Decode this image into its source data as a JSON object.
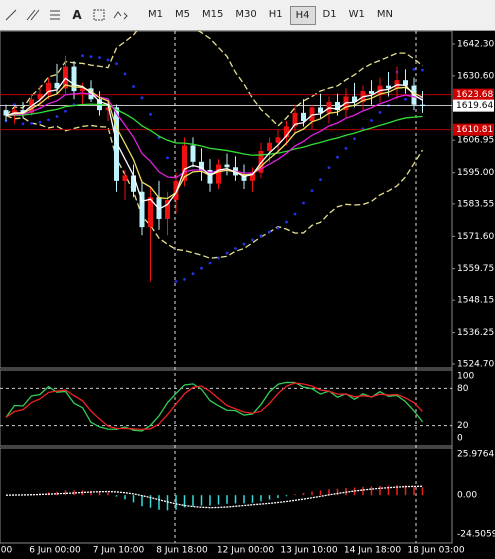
{
  "toolbar": {
    "icon_text": "A",
    "timeframes": [
      "M1",
      "M5",
      "M15",
      "M30",
      "H1",
      "H4",
      "D1",
      "W1",
      "MN"
    ],
    "active": "H4"
  },
  "chart": {
    "ylim": [
      1524.7,
      1642.3
    ],
    "yticks": [
      {
        "value": 1642.3,
        "label": "1642.30"
      },
      {
        "value": 1630.6,
        "label": "1630.60"
      },
      {
        "value": 1606.95,
        "label": "1606.95"
      },
      {
        "value": 1595.0,
        "label": "1595.00"
      },
      {
        "value": 1583.55,
        "label": "1583.55"
      },
      {
        "value": 1571.6,
        "label": "1571.60"
      },
      {
        "value": 1559.75,
        "label": "1559.75"
      },
      {
        "value": 1548.15,
        "label": "1548.15"
      },
      {
        "value": 1536.25,
        "label": "1536.25"
      },
      {
        "value": 1524.7,
        "label": "1524.70"
      }
    ],
    "levels": [
      {
        "value": 1623.68,
        "color": "#cc0000"
      },
      {
        "value": 1619.64,
        "color": "#ffffff"
      },
      {
        "value": 1610.81,
        "color": "#cc0000"
      }
    ],
    "candles": [
      [
        1618,
        1620,
        1614,
        1616
      ],
      [
        1616,
        1619,
        1613,
        1618
      ],
      [
        1618,
        1621,
        1615,
        1617
      ],
      [
        1617,
        1624,
        1616,
        1622
      ],
      [
        1622,
        1627,
        1619,
        1624
      ],
      [
        1624,
        1630,
        1622,
        1628
      ],
      [
        1628,
        1635,
        1624,
        1626
      ],
      [
        1626,
        1638,
        1624,
        1634
      ],
      [
        1634,
        1636,
        1622,
        1625
      ],
      [
        1625,
        1628,
        1620,
        1626
      ],
      [
        1626,
        1629,
        1621,
        1622
      ],
      [
        1622,
        1625,
        1616,
        1618
      ],
      [
        1618,
        1621,
        1614,
        1619
      ],
      [
        1619,
        1620,
        1588,
        1592
      ],
      [
        1592,
        1596,
        1585,
        1594
      ],
      [
        1594,
        1598,
        1586,
        1588
      ],
      [
        1588,
        1592,
        1572,
        1575
      ],
      [
        1575,
        1590,
        1555,
        1586
      ],
      [
        1586,
        1592,
        1574,
        1578
      ],
      [
        1578,
        1588,
        1572,
        1585
      ],
      [
        1585,
        1595,
        1580,
        1592
      ],
      [
        1592,
        1608,
        1590,
        1605
      ],
      [
        1605,
        1608,
        1597,
        1599
      ],
      [
        1599,
        1604,
        1592,
        1596
      ],
      [
        1596,
        1600,
        1588,
        1591
      ],
      [
        1591,
        1600,
        1589,
        1598
      ],
      [
        1598,
        1602,
        1594,
        1597
      ],
      [
        1597,
        1601,
        1592,
        1594
      ],
      [
        1594,
        1598,
        1589,
        1592
      ],
      [
        1592,
        1597,
        1588,
        1595
      ],
      [
        1595,
        1606,
        1593,
        1603
      ],
      [
        1603,
        1608,
        1599,
        1606
      ],
      [
        1606,
        1611,
        1603,
        1608
      ],
      [
        1608,
        1614,
        1605,
        1612
      ],
      [
        1612,
        1620,
        1609,
        1617
      ],
      [
        1617,
        1622,
        1612,
        1614
      ],
      [
        1614,
        1620,
        1611,
        1619
      ],
      [
        1619,
        1624,
        1615,
        1617
      ],
      [
        1617,
        1623,
        1613,
        1621
      ],
      [
        1621,
        1624,
        1616,
        1618
      ],
      [
        1618,
        1626,
        1615,
        1623
      ],
      [
        1623,
        1628,
        1619,
        1621
      ],
      [
        1621,
        1627,
        1618,
        1625
      ],
      [
        1625,
        1629,
        1620,
        1624
      ],
      [
        1624,
        1630,
        1621,
        1627
      ],
      [
        1627,
        1632,
        1623,
        1626
      ],
      [
        1626,
        1634,
        1622,
        1629
      ],
      [
        1629,
        1633,
        1624,
        1627
      ],
      [
        1627,
        1630,
        1618,
        1620
      ],
      [
        1620,
        1625,
        1617,
        1619.64
      ]
    ]
  },
  "stochastic": {
    "ylim": [
      0,
      100
    ],
    "yticks": [
      100,
      80,
      20,
      0
    ]
  },
  "macd": {
    "ylim": [
      -24.5059,
      25.9764
    ],
    "yticks": [
      25.9764,
      {
        "value": 0,
        "label": "0.00"
      },
      -24.5059
    ]
  },
  "time_labels": [
    ":00",
    "6 Jun 00:00",
    "7 Jun 10:00",
    "8 Jun 18:00",
    "12 Jun 00:00",
    "13 Jun 10:00",
    "14 Jun 18:00",
    "18 Jun 03:00"
  ]
}
